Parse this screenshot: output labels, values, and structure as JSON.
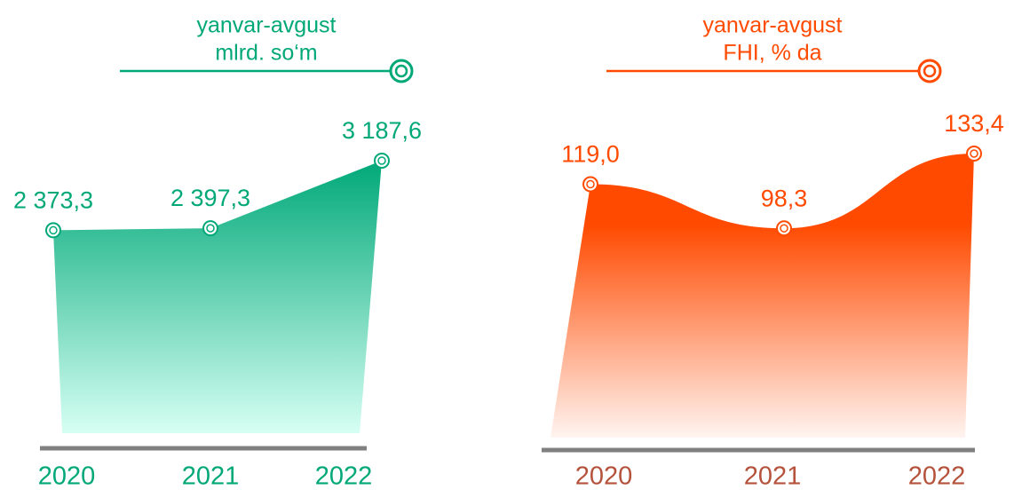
{
  "chart_data": [
    {
      "type": "area",
      "title": "yanvar-avgust",
      "subtitle": "mlrd. so‘m",
      "categories": [
        "2020",
        "2021",
        "2022"
      ],
      "values": [
        2373.3,
        2397.3,
        3187.6
      ],
      "value_labels": [
        "2 373,3",
        "2 397,3",
        "3 187,6"
      ],
      "color": "#00a878",
      "smooth": false
    },
    {
      "type": "area",
      "title": "yanvar-avgust",
      "subtitle": "FHI, % da",
      "categories": [
        "2020",
        "2021",
        "2022"
      ],
      "values": [
        119.0,
        98.3,
        133.4
      ],
      "value_labels": [
        "119,0",
        "98,3",
        "133,4"
      ],
      "color": "#ff4a00",
      "smooth": true
    }
  ]
}
